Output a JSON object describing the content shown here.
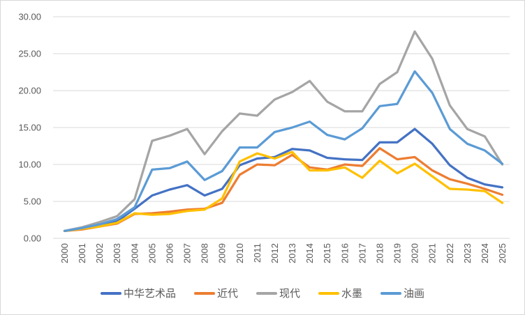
{
  "chart_data": {
    "type": "line",
    "title": "",
    "xlabel": "",
    "ylabel": "",
    "grid": true,
    "legend_position": "bottom",
    "x_categories": [
      "2000",
      "2001",
      "2002",
      "2003",
      "2004",
      "2005",
      "2006",
      "2007",
      "2008",
      "2009",
      "2010",
      "2011",
      "2012",
      "2013",
      "2014",
      "2015",
      "2016",
      "2017",
      "2018",
      "2019",
      "2020",
      "2021",
      "2022",
      "2023",
      "2024",
      "2025"
    ],
    "y_axis": {
      "min": 0,
      "max": 30,
      "step": 5,
      "tick_labels": [
        "0.00",
        "5.00",
        "10.00",
        "15.00",
        "20.00",
        "25.00",
        "30.00"
      ]
    },
    "series": [
      {
        "name": "中华艺术品",
        "color": "#4472C4",
        "values": [
          1.0,
          1.3,
          1.7,
          2.3,
          4.0,
          5.8,
          6.6,
          7.2,
          5.8,
          6.7,
          9.9,
          10.8,
          11.0,
          12.1,
          11.9,
          10.9,
          10.7,
          10.6,
          13.0,
          13.0,
          14.8,
          12.8,
          9.9,
          8.2,
          7.3,
          6.9
        ]
      },
      {
        "name": "近代",
        "color": "#ED7D31",
        "values": [
          1.0,
          1.2,
          1.6,
          2.0,
          3.3,
          3.4,
          3.6,
          3.9,
          4.0,
          4.8,
          8.6,
          10.0,
          9.9,
          11.3,
          9.6,
          9.3,
          10.0,
          9.8,
          12.2,
          10.7,
          11.0,
          9.2,
          8.0,
          7.4,
          6.7,
          5.9
        ]
      },
      {
        "name": "现代",
        "color": "#A5A5A5",
        "values": [
          1.0,
          1.5,
          2.2,
          3.0,
          5.3,
          13.2,
          13.9,
          14.8,
          11.4,
          14.5,
          16.9,
          16.6,
          18.8,
          19.8,
          21.3,
          18.5,
          17.2,
          17.2,
          20.9,
          22.5,
          28.0,
          24.3,
          18.0,
          14.8,
          13.8,
          10.0
        ]
      },
      {
        "name": "水墨",
        "color": "#FFC000",
        "values": [
          1.0,
          1.3,
          1.6,
          2.1,
          3.4,
          3.2,
          3.3,
          3.7,
          3.9,
          5.4,
          10.4,
          11.5,
          10.8,
          11.7,
          9.2,
          9.2,
          9.6,
          8.2,
          10.5,
          8.8,
          10.1,
          8.4,
          6.7,
          6.6,
          6.4,
          4.8
        ]
      },
      {
        "name": "油画",
        "color": "#5B9BD5",
        "values": [
          1.0,
          1.4,
          1.9,
          2.6,
          4.2,
          9.3,
          9.5,
          10.4,
          7.9,
          9.1,
          12.3,
          12.3,
          14.4,
          15.0,
          15.8,
          14.0,
          13.4,
          14.9,
          17.9,
          18.2,
          22.6,
          19.7,
          14.8,
          12.8,
          11.9,
          10.1
        ]
      }
    ]
  }
}
